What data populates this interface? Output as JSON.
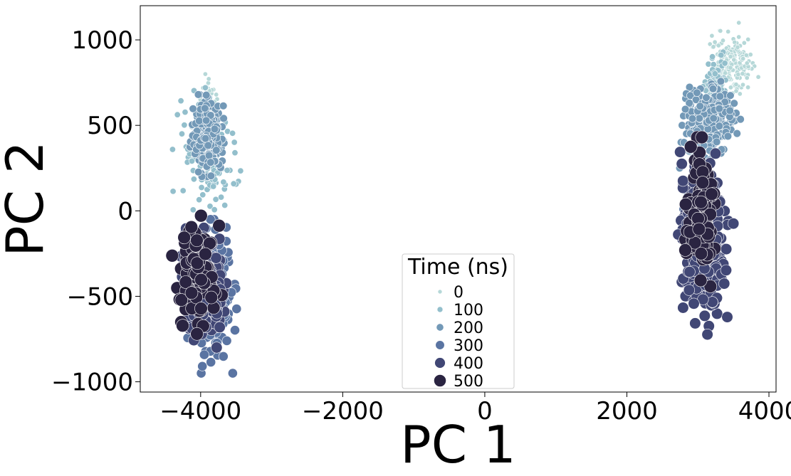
{
  "chart_data": {
    "type": "scatter",
    "title": "",
    "xlabel": "PC 1",
    "ylabel": "PC 2",
    "xlim": [
      -4850,
      4100
    ],
    "ylim": [
      -1060,
      1200
    ],
    "xticks": [
      -4000,
      -2000,
      0,
      2000,
      4000
    ],
    "xtick_labels": [
      "−4000",
      "−2000",
      "0",
      "2000",
      "4000"
    ],
    "yticks": [
      -1000,
      -500,
      0,
      500,
      1000
    ],
    "ytick_labels": [
      "−1000",
      "−500",
      "0",
      "500",
      "1000"
    ],
    "grid": false,
    "legend": {
      "title": "Time (ns)",
      "placement": "lower-center",
      "entries": [
        "0",
        "100",
        "200",
        "300",
        "400",
        "500"
      ]
    },
    "series": [
      {
        "name": "0",
        "color": "#b6d8d8",
        "clusters": [
          {
            "x": [
              -4050,
              -3700
            ],
            "y": [
              250,
              800
            ]
          },
          {
            "x": [
              3100,
              3850
            ],
            "y": [
              650,
              1100
            ]
          }
        ]
      },
      {
        "name": "100",
        "color": "#93bfcc",
        "clusters": [
          {
            "x": [
              -4400,
              -3400
            ],
            "y": [
              -50,
              720
            ]
          },
          {
            "x": [
              3000,
              3500
            ],
            "y": [
              350,
              950
            ]
          }
        ]
      },
      {
        "name": "200",
        "color": "#7399b7",
        "clusters": [
          {
            "x": [
              -4150,
              -3650
            ],
            "y": [
              200,
              680
            ]
          },
          {
            "x": [
              2700,
              3600
            ],
            "y": [
              250,
              770
            ]
          }
        ]
      },
      {
        "name": "300",
        "color": "#5a74a2",
        "clusters": [
          {
            "x": [
              -4250,
              -3450
            ],
            "y": [
              -950,
              -50
            ]
          },
          {
            "x": [
              2800,
              3300
            ],
            "y": [
              -200,
              200
            ]
          }
        ]
      },
      {
        "name": "400",
        "color": "#414775",
        "clusters": [
          {
            "x": [
              -4350,
              -3600
            ],
            "y": [
              -800,
              -100
            ]
          },
          {
            "x": [
              2650,
              3500
            ],
            "y": [
              -760,
              400
            ]
          }
        ]
      },
      {
        "name": "500",
        "color": "#2a2441",
        "clusters": [
          {
            "x": [
              -4400,
              -3650
            ],
            "y": [
              -720,
              -20
            ]
          },
          {
            "x": [
              2800,
              3300
            ],
            "y": [
              -450,
              430
            ]
          }
        ]
      }
    ]
  }
}
